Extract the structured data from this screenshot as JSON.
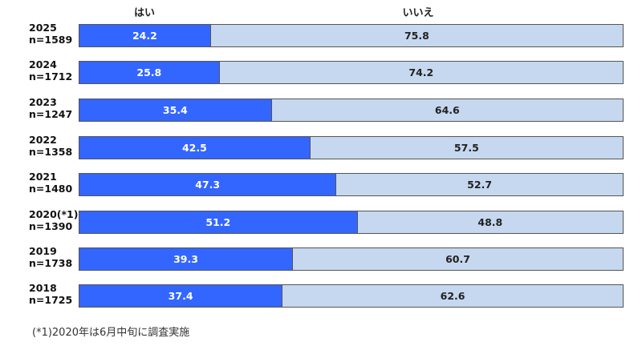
{
  "chart_data": {
    "type": "bar",
    "orientation": "horizontal",
    "stacked": true,
    "percent": true,
    "categories": [
      "2025\nn=1589",
      "2024\nn=1712",
      "2023\nn=1247",
      "2022\nn=1358",
      "2021\nn=1480",
      "2020(*1)\nn=1390",
      "2019\nn=1738",
      "2018\nn=1725"
    ],
    "series": [
      {
        "name": "はい",
        "color": "#3366ff",
        "values": [
          24.2,
          25.8,
          35.4,
          42.5,
          47.3,
          51.2,
          39.3,
          37.4
        ]
      },
      {
        "name": "いいえ",
        "color": "#c6d8ef",
        "values": [
          75.8,
          74.2,
          64.6,
          57.5,
          52.7,
          48.8,
          60.7,
          62.6
        ]
      }
    ],
    "xlim": [
      0,
      100
    ],
    "legend_position": "top",
    "grid": false,
    "annotations": [
      "(*1)2020年は6月中旬に調査実施"
    ]
  },
  "legend": {
    "yes": "はい",
    "no": "いいえ"
  },
  "rows": [
    {
      "year": "2025",
      "n": "n=1589",
      "yes": "24.2",
      "no": "75.8"
    },
    {
      "year": "2024",
      "n": "n=1712",
      "yes": "25.8",
      "no": "74.2"
    },
    {
      "year": "2023",
      "n": "n=1247",
      "yes": "35.4",
      "no": "64.6"
    },
    {
      "year": "2022",
      "n": "n=1358",
      "yes": "42.5",
      "no": "57.5"
    },
    {
      "year": "2021",
      "n": "n=1480",
      "yes": "47.3",
      "no": "52.7"
    },
    {
      "year": "2020(*1)",
      "n": "n=1390",
      "yes": "51.2",
      "no": "48.8"
    },
    {
      "year": "2019",
      "n": "n=1738",
      "yes": "39.3",
      "no": "60.7"
    },
    {
      "year": "2018",
      "n": "n=1725",
      "yes": "37.4",
      "no": "62.6"
    }
  ],
  "footnote": "(*1)2020年は6月中旬に調査実施",
  "colors": {
    "yes": "#3366ff",
    "no": "#c6d8ef",
    "border": "#555555"
  }
}
